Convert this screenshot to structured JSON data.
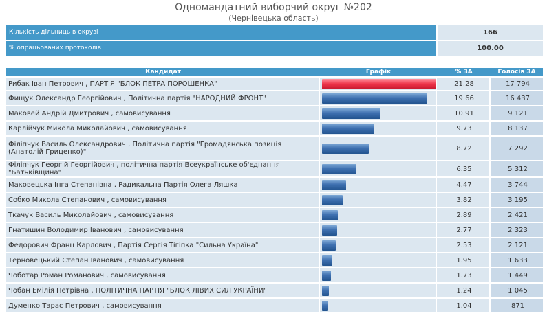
{
  "header": {
    "title": "Одномандатний виборчий округ №202",
    "subtitle": "(Чернівецька область)"
  },
  "summary": [
    {
      "label": "Кількість дільниць в окрузі",
      "value": "166"
    },
    {
      "label": "% опрацьованих протоколів",
      "value": "100.00"
    }
  ],
  "table": {
    "headers": {
      "candidate": "Кандидат",
      "graph": "Графік",
      "pct": "% ЗА",
      "votes": "Голосів ЗА"
    },
    "rows": [
      {
        "name": "Рибак Іван Петрович",
        "party": "ПАРТІЯ \"БЛОК ПЕТРА ПОРОШЕНКА\"",
        "pct": "21.28",
        "votes": "17 794"
      },
      {
        "name": "Фищук Олександр Георгійович",
        "party": "Політична партія \"НАРОДНИЙ ФРОНТ\"",
        "pct": "19.66",
        "votes": "16 437"
      },
      {
        "name": "Маковей Андрій Дмитрович",
        "party": "самовисування",
        "pct": "10.91",
        "votes": "9 121"
      },
      {
        "name": "Карлійчук Микола Миколайович",
        "party": "самовисування",
        "pct": "9.73",
        "votes": "8 137"
      },
      {
        "name": "Філіпчук Василь Олександрович",
        "party": "Політична партія \"Громадянська позиція (Анатолій Гриценко)\"",
        "pct": "8.72",
        "votes": "7 292"
      },
      {
        "name": "Філіпчук Георгій Георгійович",
        "party": "політична партія Всеукраїнське об'єднання \"Батьківщина\"",
        "pct": "6.35",
        "votes": "5 312"
      },
      {
        "name": "Маковецька Інга Степанівна",
        "party": "Радикальна Партія Олега Ляшка",
        "pct": "4.47",
        "votes": "3 744"
      },
      {
        "name": "Собко Микола Степанович",
        "party": "самовисування",
        "pct": "3.82",
        "votes": "3 195"
      },
      {
        "name": "Ткачук Василь Миколайович",
        "party": "самовисування",
        "pct": "2.89",
        "votes": "2 421"
      },
      {
        "name": "Гнатишин Володимир Іванович",
        "party": "самовисування",
        "pct": "2.77",
        "votes": "2 323"
      },
      {
        "name": "Федорович Франц Карлович",
        "party": "Партія Сергія Тігіпка \"Сильна Україна\"",
        "pct": "2.53",
        "votes": "2 121"
      },
      {
        "name": "Терновецький Степан Іванович",
        "party": "самовисування",
        "pct": "1.95",
        "votes": "1 633"
      },
      {
        "name": "Чоботар Роман Романович",
        "party": "самовисування",
        "pct": "1.73",
        "votes": "1 449"
      },
      {
        "name": "Чобан Емілія Петрівна",
        "party": "ПОЛІТИЧНА ПАРТІЯ \"БЛОК ЛІВИХ СИЛ УКРАЇНИ\"",
        "pct": "1.24",
        "votes": "1 045"
      },
      {
        "name": "Думенко Тарас Петрович",
        "party": "самовисування",
        "pct": "1.04",
        "votes": "871"
      }
    ]
  },
  "colors": {
    "header_bg": "#4499c9",
    "cell_bg": "#dce7f0",
    "votes_bg": "#c9d9e8",
    "bar_blue": "#3e70b0",
    "bar_red": "#ee3349",
    "link": "#1a4f8a"
  }
}
